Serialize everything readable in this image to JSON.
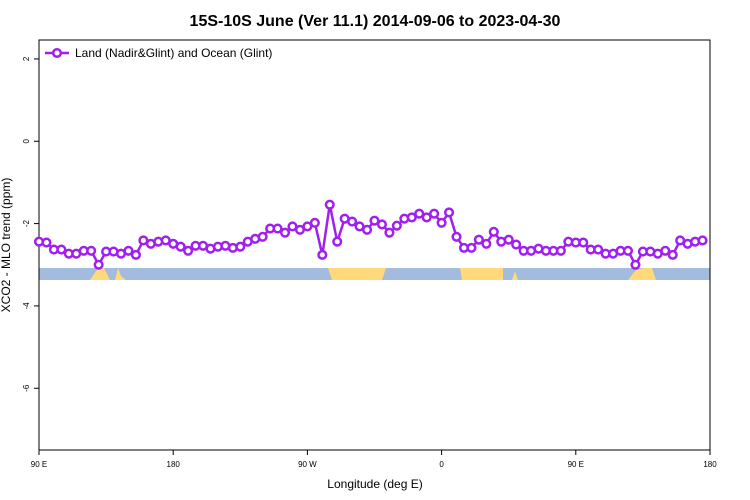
{
  "chart_data": {
    "type": "line",
    "title": "15S-10S June (Ver 11.1)   2014-09-06 to 2023-04-30",
    "xlabel": "Longitude (deg E)",
    "ylabel": "XCO2 - MLO trend (ppm)",
    "x": [
      90,
      95,
      100,
      105,
      110,
      115,
      120,
      125,
      130,
      135,
      140,
      145,
      150,
      155,
      160,
      165,
      170,
      175,
      180,
      185,
      190,
      195,
      200,
      205,
      210,
      215,
      220,
      225,
      230,
      235,
      240,
      245,
      250,
      255,
      260,
      265,
      270,
      275,
      280,
      285,
      290,
      295,
      300,
      305,
      310,
      315,
      320,
      325,
      330,
      335,
      340,
      345,
      350,
      355,
      360,
      365,
      370,
      375,
      380,
      385,
      390,
      395,
      400,
      405,
      410,
      415,
      420,
      425,
      430,
      435,
      440,
      445,
      450,
      455,
      460,
      465,
      470,
      475,
      480,
      485,
      490,
      495,
      500,
      505,
      510,
      515,
      520,
      525,
      530,
      535
    ],
    "series": [
      {
        "name": "Land (Nadir&Glint) and Ocean (Glint)",
        "color": "#a020f0",
        "values": [
          -2.44,
          -2.46,
          -2.63,
          -2.63,
          -2.73,
          -2.73,
          -2.66,
          -2.66,
          -3.0,
          -2.68,
          -2.68,
          -2.73,
          -2.66,
          -2.76,
          -2.41,
          -2.49,
          -2.44,
          -2.41,
          -2.49,
          -2.56,
          -2.66,
          -2.54,
          -2.54,
          -2.61,
          -2.56,
          -2.54,
          -2.59,
          -2.56,
          -2.44,
          -2.37,
          -2.32,
          -2.12,
          -2.12,
          -2.22,
          -2.07,
          -2.15,
          -2.07,
          -1.98,
          -2.76,
          -1.54,
          -2.44,
          -1.88,
          -1.95,
          -2.07,
          -2.15,
          -1.93,
          -2.02,
          -2.22,
          -2.05,
          -1.88,
          -1.85,
          -1.76,
          -1.85,
          -1.76,
          -1.98,
          -1.73,
          -2.32,
          -2.59,
          -2.59,
          -2.39,
          -2.49,
          -2.2,
          -2.44,
          -2.39,
          -2.51,
          -2.66,
          -2.66,
          -2.61,
          -2.66,
          -2.66,
          -2.66,
          -2.44,
          -2.46,
          -2.46,
          -2.63,
          -2.63,
          -2.73,
          -2.73,
          -2.66,
          -2.66,
          -3.0,
          -2.68,
          -2.68,
          -2.73,
          -2.66,
          -2.76,
          -2.41,
          -2.49,
          -2.44,
          -2.41
        ]
      }
    ],
    "xlim": [
      90,
      540
    ],
    "xticks": [
      {
        "value": 90,
        "label": "90 E"
      },
      180,
      {
        "value": 270,
        "label": "90 W"
      },
      {
        "value": 360,
        "label": "0"
      },
      {
        "value": 450,
        "label": "90 E"
      },
      {
        "value": 540,
        "label": "180"
      }
    ],
    "ylim": [
      -7.5,
      2.46
    ],
    "yticks": [
      2,
      0,
      -2,
      -4,
      -6
    ],
    "legend": "top-left"
  }
}
